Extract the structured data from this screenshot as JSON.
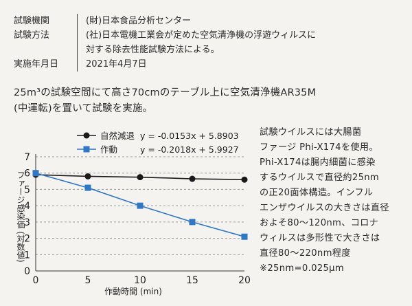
{
  "info": [
    {
      "label": "試験機関",
      "value": "(財)日本食品分析センター"
    },
    {
      "label": "試験方法",
      "value": "(社)日本電機工業会が定めた空気清浄機の浮遊ウィルスに"
    },
    {
      "label": "",
      "value": "対する除去性能試験方法による。"
    },
    {
      "label": "実施年月日",
      "value": "2021年4月7日"
    }
  ],
  "description": {
    "line1": "25m³の試験空間にて高さ70cmのテーブル上に空気清浄機AR35M",
    "line2": "(中運転)を置いて試験を実施。"
  },
  "chart_data": {
    "type": "line",
    "x": [
      0,
      5,
      10,
      15,
      20
    ],
    "series": [
      {
        "name": "自然減退",
        "values": [
          5.9,
          5.8,
          5.75,
          5.65,
          5.6
        ],
        "color": "#1a1a1a",
        "marker": "circle",
        "equation": "y = -0.0153x + 5.8903"
      },
      {
        "name": "作動",
        "values": [
          6.0,
          5.1,
          4.0,
          3.0,
          2.1
        ],
        "color": "#2f78c6",
        "marker": "square",
        "equation": "y = -0.2018x + 5.9927"
      }
    ],
    "xlabel": "作動時間 (min)",
    "ylabel": "ファージ感染価 (対数値)",
    "xlim": [
      0,
      20
    ],
    "ylim": [
      0,
      7
    ],
    "xticks": [
      "0",
      "5",
      "10",
      "15",
      "20"
    ],
    "yticks": [
      "0",
      "1",
      "2",
      "3",
      "4",
      "5",
      "6",
      "7"
    ],
    "grid": true,
    "legend_position": "top-left"
  },
  "side_text": [
    "試験ウイルスには大腸菌",
    "ファージ Phi-X174を使用。",
    "Phi-X174は腸内細菌に感染",
    "するウイルスで直径約25nm",
    "の正20面体構造。インフル",
    "エンザウイルスの大きさは直径",
    "およそ80～120nm、コロナ",
    "ウィルスは多形性で大きさは",
    "直径80～220nm程度",
    "※25nm=0.025μm"
  ]
}
